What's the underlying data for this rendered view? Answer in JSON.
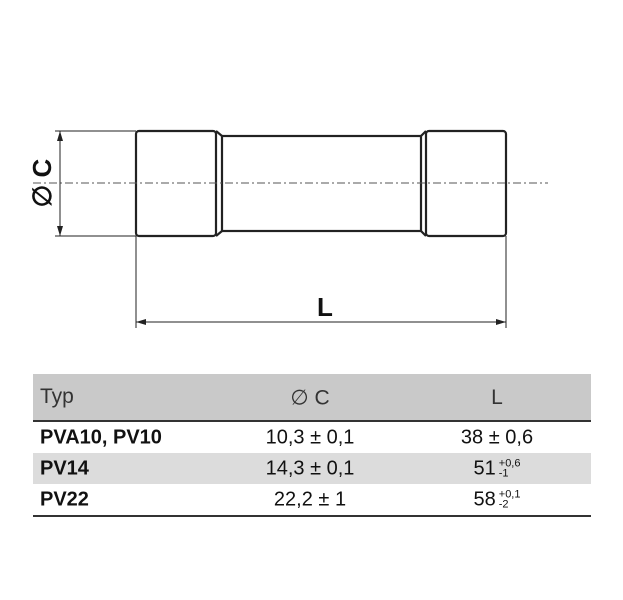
{
  "drawing": {
    "diameter_label": "∅ C",
    "length_label": "L"
  },
  "table": {
    "headers": [
      "Typ",
      "∅ C",
      "L"
    ],
    "rows": [
      {
        "typ": "PVA10, PV10",
        "c": "10,3 ± 0,1",
        "l": "38 ± 0,6",
        "l_tol_plus": "",
        "l_tol_minus": ""
      },
      {
        "typ": "PV14",
        "c": "14,3 ± 0,1",
        "l": "51",
        "l_tol_plus": "+0,6",
        "l_tol_minus": "-1"
      },
      {
        "typ": "PV22",
        "c": "22,2 ± 1",
        "l": "58",
        "l_tol_plus": "+0,1",
        "l_tol_minus": "-2"
      }
    ]
  }
}
